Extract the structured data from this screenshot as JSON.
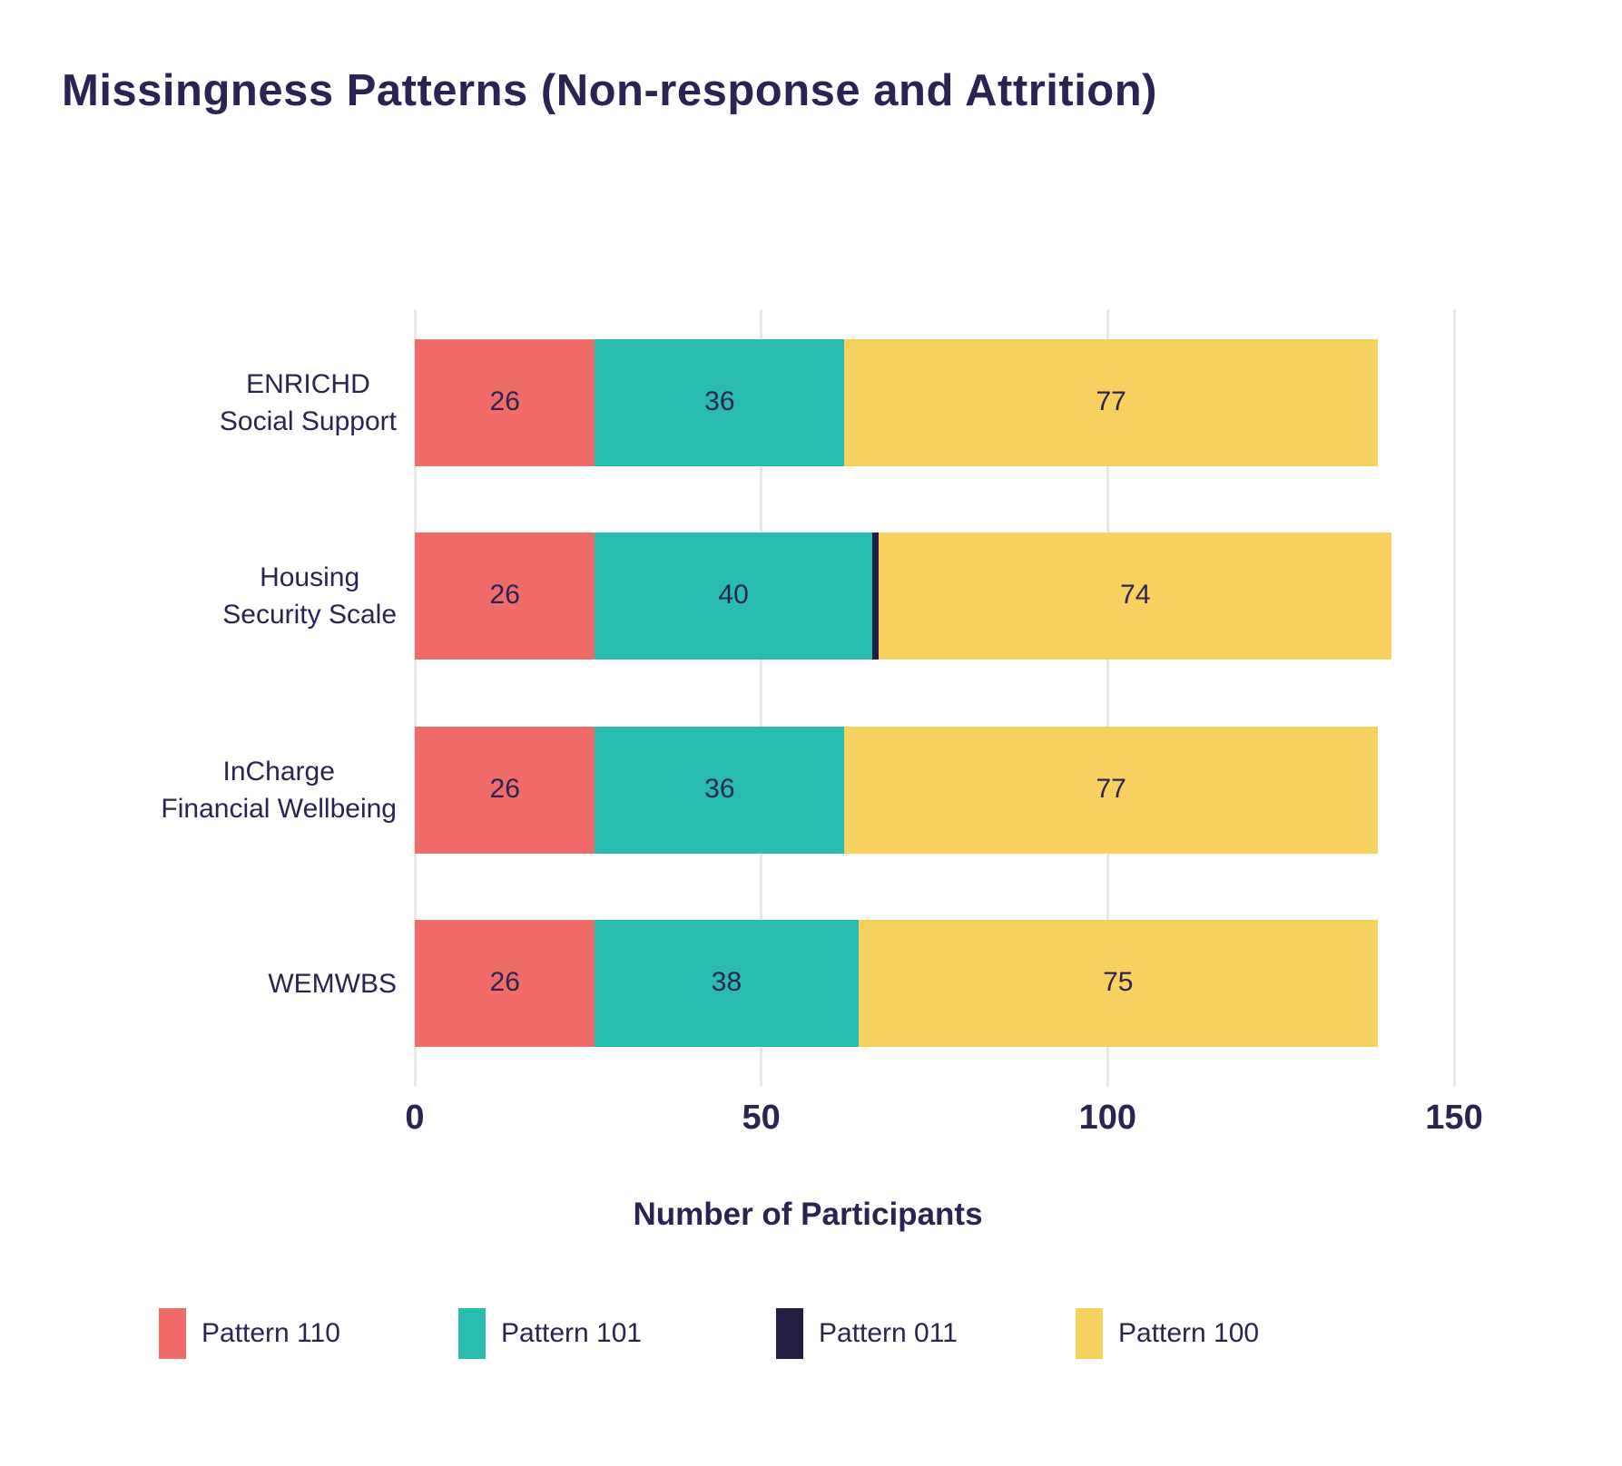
{
  "title": "Missingness Patterns (Non-response and Attrition)",
  "colors": {
    "pattern_110": "#f06c68",
    "pattern_101": "#29bcb3",
    "pattern_011": "#231e41",
    "pattern_100": "#f6d160",
    "text": "#2b2452",
    "gridline": "#e8e8e8"
  },
  "chart_data": {
    "type": "bar",
    "orientation": "horizontal",
    "stacked": true,
    "title": "Missingness Patterns (Non-response and Attrition)",
    "categories": [
      [
        "ENRICHD",
        "Social Support"
      ],
      [
        "Housing",
        "Security Scale"
      ],
      [
        "InCharge",
        "Financial Wellbeing"
      ],
      [
        "WEMWBS"
      ]
    ],
    "series": [
      {
        "name": "Pattern 110",
        "color": "#f06c68",
        "values": [
          26,
          26,
          26,
          26
        ]
      },
      {
        "name": "Pattern 101",
        "color": "#29bcb3",
        "values": [
          36,
          40,
          36,
          38
        ]
      },
      {
        "name": "Pattern 011",
        "color": "#231e41",
        "values": [
          0,
          1,
          0,
          0
        ]
      },
      {
        "name": "Pattern 100",
        "color": "#f6d160",
        "values": [
          77,
          74,
          77,
          75
        ]
      }
    ],
    "xlabel": "Number of Participants",
    "ylabel": "",
    "xticks": [
      0,
      50,
      100,
      150
    ],
    "xlim": [
      0,
      150
    ],
    "grid": true,
    "legend_position": "bottom"
  }
}
